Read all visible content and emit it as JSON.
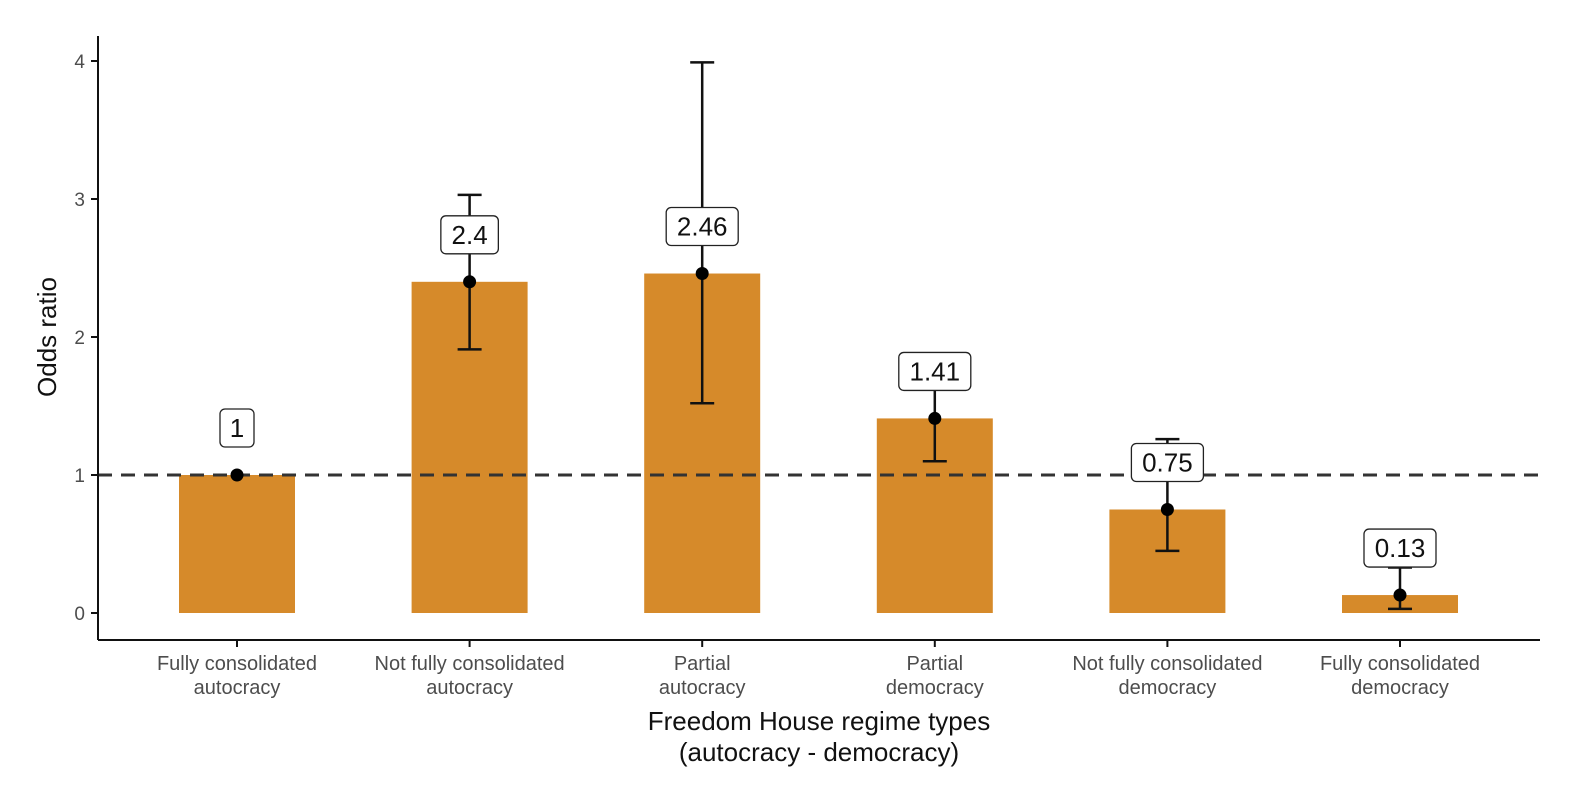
{
  "chart_data": {
    "type": "bar",
    "categories": [
      [
        "Fully consolidated",
        "autocracy"
      ],
      [
        "Not fully consolidated",
        "autocracy"
      ],
      [
        "Partial",
        "autocracy"
      ],
      [
        "Partial",
        "democracy"
      ],
      [
        "Not fully consolidated",
        "democracy"
      ],
      [
        "Fully consolidated",
        "democracy"
      ]
    ],
    "values": [
      1,
      2.4,
      2.46,
      1.41,
      0.75,
      0.13
    ],
    "data_labels": [
      "1",
      "2.4",
      "2.46",
      "1.41",
      "0.75",
      "0.13"
    ],
    "ci_low": [
      1,
      1.91,
      1.52,
      1.1,
      0.45,
      0.03
    ],
    "ci_high": [
      1,
      3.03,
      3.99,
      1.62,
      1.26,
      0.33
    ],
    "reference_line": 1,
    "xlabel": [
      "Freedom House regime types",
      "(autocracy - democracy)"
    ],
    "ylabel": "Odds ratio",
    "ylim": [
      -0.17,
      4.2
    ],
    "yticks": [
      0,
      1,
      2,
      3,
      4
    ],
    "grid": false,
    "legend": "none",
    "colors": {
      "bar": "#d68a2a",
      "errorbar": "#111111",
      "point": "#000000",
      "reference_line": "#333333",
      "axis": "#111111"
    }
  }
}
